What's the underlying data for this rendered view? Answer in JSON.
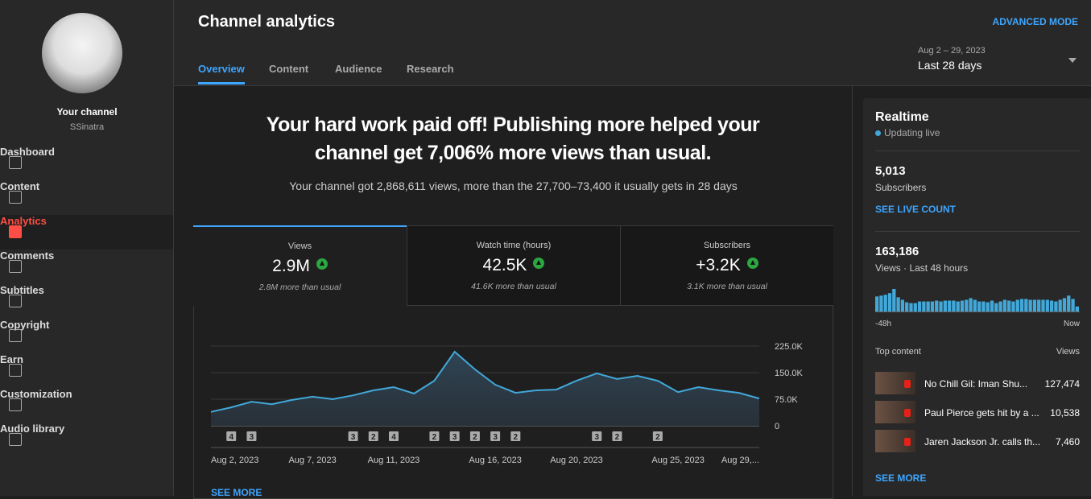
{
  "sidebar": {
    "channel_label": "Your channel",
    "channel_name": "SSinatra",
    "nav": [
      "Dashboard",
      "Content",
      "Analytics",
      "Comments",
      "Subtitles",
      "Copyright",
      "Earn",
      "Customization",
      "Audio library"
    ],
    "active": "Analytics"
  },
  "header": {
    "title": "Channel analytics",
    "tabs": [
      "Overview",
      "Content",
      "Audience",
      "Research"
    ],
    "active_tab": "Overview",
    "date_range": "Aug 2 – 29, 2023",
    "period": "Last 28 days",
    "advanced_mode": "ADVANCED MODE"
  },
  "summary": {
    "headline": "Your hard work paid off! Publishing more helped your channel get 7,006% more views than usual.",
    "subtext": "Your channel got 2,868,611 views, more than the 27,700–73,400 it usually gets in 28 days"
  },
  "metrics": [
    {
      "label": "Views",
      "value": "2.9M",
      "note": "2.8M more than usual"
    },
    {
      "label": "Watch time (hours)",
      "value": "42.5K",
      "note": "41.6K more than usual"
    },
    {
      "label": "Subscribers",
      "value": "+3.2K",
      "note": "3.1K more than usual"
    }
  ],
  "chart_data": {
    "type": "line",
    "categories": [
      "Aug 2, 2023",
      null,
      null,
      null,
      null,
      "Aug 7, 2023",
      null,
      null,
      null,
      "Aug 11, 2023",
      null,
      null,
      null,
      null,
      "Aug 16, 2023",
      null,
      null,
      null,
      "Aug 20, 2023",
      null,
      null,
      null,
      null,
      "Aug 25, 2023",
      null,
      null,
      null,
      "Aug 29,..."
    ],
    "values": [
      39000,
      52000,
      68000,
      61000,
      73000,
      82000,
      75000,
      86000,
      100000,
      109000,
      91000,
      127000,
      209000,
      159000,
      116000,
      93000,
      100000,
      102000,
      127000,
      148000,
      132000,
      141000,
      127000,
      95000,
      109000,
      100000,
      93000,
      77000
    ],
    "markers": [
      null,
      4,
      3,
      null,
      null,
      null,
      null,
      3,
      2,
      4,
      null,
      2,
      3,
      2,
      3,
      2,
      null,
      null,
      null,
      3,
      2,
      null,
      2,
      null,
      null,
      null,
      null,
      null
    ],
    "color": "#41a8d9",
    "ylim": [
      0,
      225000
    ],
    "yticks": [
      0,
      {
        "value": 75000,
        "label": "75.0K"
      },
      {
        "value": 150000,
        "label": "150.0K"
      },
      {
        "value": 225000,
        "label": "225.0K"
      }
    ],
    "grid": true
  },
  "see_more": "SEE MORE",
  "realtime": {
    "title": "Realtime",
    "status": "Updating live",
    "subscribers": "5,013",
    "subscribers_label": "Subscribers",
    "live_count": "SEE LIVE COUNT",
    "views": "163,186",
    "views_label": "Views · Last 48 hours",
    "bars": [
      4500,
      4750,
      5000,
      5500,
      6750,
      4250,
      3500,
      2750,
      2500,
      2500,
      3000,
      3000,
      3000,
      3000,
      3250,
      3000,
      3250,
      3250,
      3250,
      3000,
      3250,
      3500,
      4000,
      3500,
      3000,
      3000,
      2750,
      3250,
      2500,
      3000,
      3500,
      3250,
      3000,
      3500,
      3750,
      3750,
      3500,
      3500,
      3500,
      3500,
      3500,
      3250,
      3000,
      3500,
      4000,
      4750,
      3750,
      1500
    ],
    "bar_color": "#41a8d9",
    "start_label": "-48h",
    "end_label": "Now",
    "top_content_label": "Top content",
    "top_views_label": "Views",
    "top_content": [
      {
        "title": "No Chill Gil: Iman Shu...",
        "views": "127,474"
      },
      {
        "title": "Paul Pierce gets hit by a ...",
        "views": "10,538"
      },
      {
        "title": "Jaren Jackson Jr. calls th...",
        "views": "7,460"
      }
    ],
    "see_more": "SEE MORE"
  }
}
